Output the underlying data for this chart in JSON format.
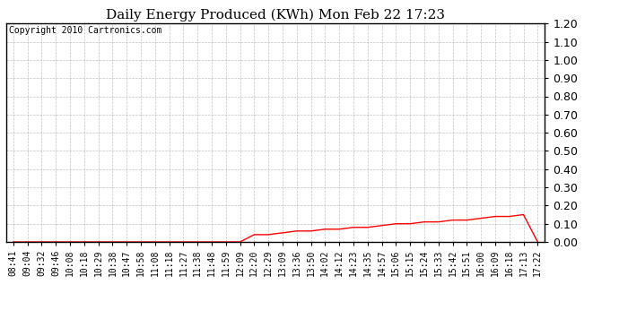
{
  "title": "Daily Energy Produced (KWh) Mon Feb 22 17:23",
  "copyright_text": "Copyright 2010 Cartronics.com",
  "line_color": "#ff0000",
  "background_color": "#ffffff",
  "plot_bg_color": "#ffffff",
  "grid_color": "#999999",
  "ylim": [
    0.0,
    1.2
  ],
  "yticks": [
    0.0,
    0.1,
    0.2,
    0.3,
    0.4,
    0.5,
    0.6,
    0.7,
    0.8,
    0.9,
    1.0,
    1.1,
    1.2
  ],
  "x_labels": [
    "08:41",
    "09:04",
    "09:32",
    "09:46",
    "10:08",
    "10:18",
    "10:29",
    "10:38",
    "10:47",
    "10:58",
    "11:08",
    "11:18",
    "11:27",
    "11:38",
    "11:48",
    "11:59",
    "12:09",
    "12:20",
    "12:29",
    "13:09",
    "13:36",
    "13:50",
    "14:02",
    "14:12",
    "14:23",
    "14:35",
    "14:57",
    "15:06",
    "15:15",
    "15:24",
    "15:33",
    "15:42",
    "15:51",
    "16:00",
    "16:09",
    "16:18",
    "17:13",
    "17:22"
  ],
  "y_values": [
    0.0,
    0.0,
    0.0,
    0.0,
    0.0,
    0.0,
    0.0,
    0.0,
    0.0,
    0.0,
    0.0,
    0.0,
    0.0,
    0.0,
    0.0,
    0.0,
    0.0,
    0.04,
    0.04,
    0.05,
    0.06,
    0.06,
    0.07,
    0.07,
    0.08,
    0.08,
    0.09,
    0.1,
    0.1,
    0.11,
    0.11,
    0.12,
    0.12,
    0.13,
    0.14,
    0.14,
    0.15,
    0.0
  ],
  "title_fontsize": 11,
  "tick_fontsize": 7,
  "ytick_fontsize": 9,
  "copyright_fontsize": 7
}
